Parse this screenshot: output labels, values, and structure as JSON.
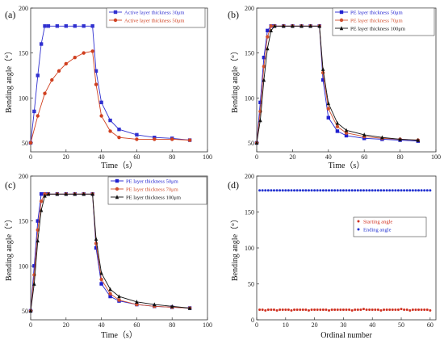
{
  "chart_data": [
    {
      "panel_label": "(a)",
      "type": "line",
      "xlabel": "Time（s）",
      "ylabel": "Bending angle（°）",
      "xlim": [
        0,
        100
      ],
      "ylim": [
        40,
        200
      ],
      "x_ticks": [
        0,
        20,
        40,
        60,
        80,
        100
      ],
      "y_ticks": [
        50,
        100,
        150,
        200
      ],
      "x_tick_labels": [
        "0",
        "20",
        "40",
        "60",
        "80",
        "100"
      ],
      "y_tick_labels": [
        "50",
        "100",
        "150",
        "200"
      ],
      "legend_position": "top-right",
      "series": [
        {
          "name": "Active layer thickness 30μm",
          "color": "#3030d0",
          "marker": "square",
          "x": [
            0,
            2,
            4,
            6,
            8,
            10,
            15,
            20,
            25,
            30,
            35,
            37,
            40,
            45,
            50,
            60,
            70,
            80,
            90
          ],
          "y": [
            50,
            85,
            125,
            160,
            180,
            180,
            180,
            180,
            180,
            180,
            180,
            130,
            95,
            75,
            65,
            59,
            56,
            55,
            53
          ]
        },
        {
          "name": "Active layer thickness 50μm",
          "color": "#d04020",
          "marker": "circle",
          "x": [
            0,
            4,
            8,
            12,
            16,
            20,
            25,
            30,
            35,
            37,
            40,
            45,
            50,
            60,
            70,
            80,
            90
          ],
          "y": [
            50,
            80,
            105,
            120,
            130,
            138,
            145,
            150,
            152,
            115,
            80,
            63,
            56,
            54,
            54,
            54,
            53
          ]
        }
      ]
    },
    {
      "panel_label": "(b)",
      "type": "line",
      "xlabel": "Time（s）",
      "ylabel": "Bending angle（°）",
      "xlim": [
        0,
        100
      ],
      "ylim": [
        40,
        200
      ],
      "x_ticks": [
        0,
        20,
        40,
        60,
        80,
        100
      ],
      "y_ticks": [
        50,
        100,
        150,
        200
      ],
      "x_tick_labels": [
        "0",
        "20",
        "40",
        "60",
        "80",
        "100"
      ],
      "y_tick_labels": [
        "50",
        "100",
        "150",
        "200"
      ],
      "legend_position": "top-right",
      "series": [
        {
          "name": "PE layer thickness 50μm",
          "color": "#2020d0",
          "marker": "square",
          "x": [
            0,
            2,
            4,
            6,
            8,
            10,
            15,
            20,
            25,
            30,
            35,
            37,
            40,
            45,
            50,
            60,
            70,
            80,
            90
          ],
          "y": [
            50,
            95,
            145,
            175,
            180,
            180,
            180,
            180,
            180,
            180,
            180,
            120,
            78,
            63,
            58,
            55,
            54,
            53,
            52
          ]
        },
        {
          "name": "PE layer thickness 70μm",
          "color": "#d05030",
          "marker": "circle",
          "x": [
            0,
            2,
            4,
            6,
            8,
            10,
            15,
            20,
            25,
            30,
            35,
            37,
            40,
            45,
            50,
            60,
            70,
            80,
            90
          ],
          "y": [
            50,
            85,
            135,
            168,
            180,
            180,
            180,
            180,
            180,
            180,
            180,
            128,
            88,
            68,
            61,
            57,
            55,
            54,
            53
          ]
        },
        {
          "name": "PE layer thickness 100μm",
          "color": "#111111",
          "marker": "triangle",
          "x": [
            0,
            2,
            4,
            6,
            8,
            10,
            15,
            20,
            25,
            30,
            35,
            37,
            40,
            45,
            50,
            60,
            70,
            80,
            90
          ],
          "y": [
            50,
            75,
            120,
            155,
            175,
            180,
            180,
            180,
            180,
            180,
            180,
            132,
            94,
            72,
            64,
            59,
            56,
            54,
            53
          ]
        }
      ]
    },
    {
      "panel_label": "(c)",
      "type": "line",
      "xlabel": "Time（s）",
      "ylabel": "Bending angle（°）",
      "xlim": [
        0,
        100
      ],
      "ylim": [
        40,
        200
      ],
      "x_ticks": [
        0,
        20,
        40,
        60,
        80,
        100
      ],
      "y_ticks": [
        50,
        100,
        150,
        200
      ],
      "x_tick_labels": [
        "0",
        "20",
        "40",
        "60",
        "80",
        "100"
      ],
      "y_tick_labels": [
        "50",
        "100",
        "150",
        "200"
      ],
      "legend_position": "top-right",
      "series": [
        {
          "name": "PE layer thickness 50μm",
          "color": "#2020d0",
          "marker": "square",
          "x": [
            0,
            2,
            4,
            6,
            8,
            10,
            15,
            20,
            25,
            30,
            35,
            37,
            40,
            45,
            50,
            60,
            70,
            80,
            90
          ],
          "y": [
            50,
            100,
            150,
            180,
            180,
            180,
            180,
            180,
            180,
            180,
            180,
            120,
            80,
            66,
            61,
            57,
            55,
            54,
            53
          ]
        },
        {
          "name": "PE layer thickness 70μm",
          "color": "#d05030",
          "marker": "circle",
          "x": [
            0,
            2,
            4,
            6,
            8,
            10,
            15,
            20,
            25,
            30,
            35,
            37,
            40,
            45,
            50,
            60,
            70,
            80,
            90
          ],
          "y": [
            50,
            90,
            140,
            172,
            180,
            180,
            180,
            180,
            180,
            180,
            180,
            125,
            85,
            69,
            62,
            57,
            55,
            54,
            53
          ]
        },
        {
          "name": "PE layer thickness 100μm",
          "color": "#111111",
          "marker": "triangle",
          "x": [
            0,
            2,
            4,
            6,
            8,
            10,
            15,
            20,
            25,
            30,
            35,
            37,
            40,
            45,
            50,
            60,
            70,
            80,
            90
          ],
          "y": [
            50,
            80,
            128,
            162,
            178,
            180,
            180,
            180,
            180,
            180,
            180,
            130,
            92,
            74,
            66,
            60,
            57,
            55,
            53
          ]
        }
      ]
    },
    {
      "panel_label": "(d)",
      "type": "scatter",
      "xlabel": "Ordinal number",
      "ylabel": "Bending angle（°）",
      "xlim": [
        0,
        62
      ],
      "ylim": [
        0,
        200
      ],
      "x_ticks": [
        0,
        10,
        20,
        30,
        40,
        50,
        60
      ],
      "y_ticks": [
        0,
        50,
        100,
        150,
        200
      ],
      "x_tick_labels": [
        "0",
        "10",
        "20",
        "30",
        "40",
        "50",
        "60"
      ],
      "y_tick_labels": [
        "0",
        "50",
        "100",
        "150",
        "200"
      ],
      "legend_position": "right",
      "series": [
        {
          "name": "Starting angle",
          "color": "#d03020",
          "marker": "dot",
          "x": [
            1,
            2,
            3,
            4,
            5,
            6,
            7,
            8,
            9,
            10,
            11,
            12,
            13,
            14,
            15,
            16,
            17,
            18,
            19,
            20,
            21,
            22,
            23,
            24,
            25,
            26,
            27,
            28,
            29,
            30,
            31,
            32,
            33,
            34,
            35,
            36,
            37,
            38,
            39,
            40,
            41,
            42,
            43,
            44,
            45,
            46,
            47,
            48,
            49,
            50,
            51,
            52,
            53,
            54,
            55,
            56,
            57,
            58,
            59,
            60
          ],
          "y": [
            14,
            14,
            13,
            14,
            14,
            14,
            13,
            14,
            14,
            14,
            14,
            13,
            14,
            14,
            14,
            14,
            14,
            13,
            14,
            14,
            14,
            14,
            14,
            14,
            13,
            14,
            14,
            14,
            14,
            14,
            14,
            14,
            13,
            14,
            14,
            14,
            15,
            14,
            14,
            14,
            14,
            14,
            13,
            14,
            14,
            14,
            14,
            14,
            14,
            15,
            14,
            14,
            13,
            14,
            14,
            14,
            14,
            14,
            14,
            13
          ]
        },
        {
          "name": "Ending angle",
          "color": "#2030d0",
          "marker": "dot",
          "x": [
            1,
            2,
            3,
            4,
            5,
            6,
            7,
            8,
            9,
            10,
            11,
            12,
            13,
            14,
            15,
            16,
            17,
            18,
            19,
            20,
            21,
            22,
            23,
            24,
            25,
            26,
            27,
            28,
            29,
            30,
            31,
            32,
            33,
            34,
            35,
            36,
            37,
            38,
            39,
            40,
            41,
            42,
            43,
            44,
            45,
            46,
            47,
            48,
            49,
            50,
            51,
            52,
            53,
            54,
            55,
            56,
            57,
            58,
            59,
            60
          ],
          "y": [
            180,
            180,
            180,
            180,
            180,
            180,
            180,
            180,
            180,
            180,
            180,
            180,
            180,
            180,
            180,
            180,
            180,
            180,
            180,
            180,
            180,
            180,
            180,
            180,
            180,
            180,
            180,
            180,
            180,
            180,
            180,
            180,
            180,
            180,
            180,
            180,
            180,
            180,
            180,
            180,
            180,
            180,
            180,
            180,
            180,
            180,
            180,
            180,
            180,
            180,
            180,
            180,
            180,
            180,
            180,
            180,
            180,
            180,
            180,
            180
          ]
        }
      ]
    }
  ]
}
